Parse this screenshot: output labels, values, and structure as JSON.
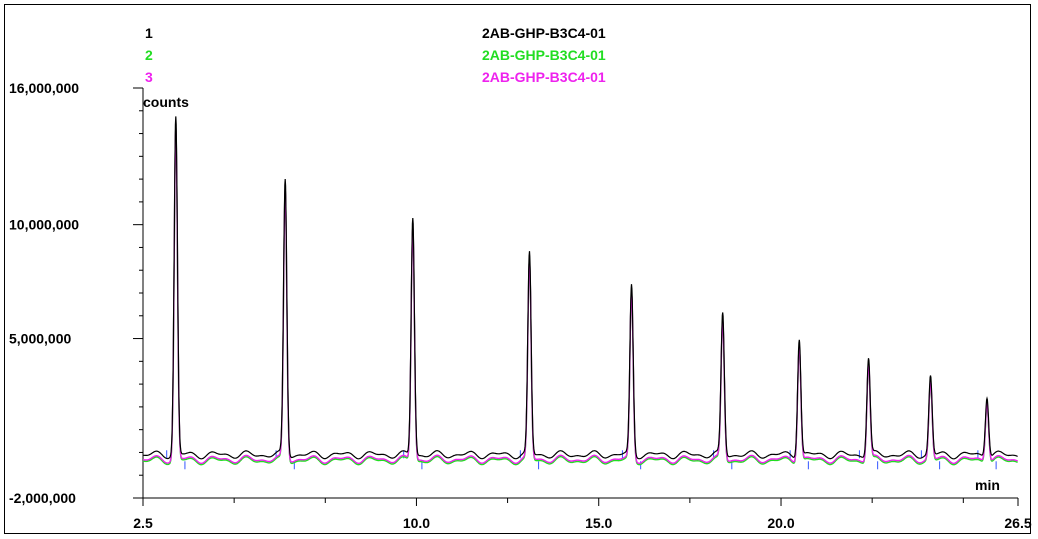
{
  "legend": [
    {
      "index": "1",
      "name": "2AB-GHP-B3C4-01",
      "color": "#000000"
    },
    {
      "index": "2",
      "name": "2AB-GHP-B3C4-01",
      "color": "#22dd22"
    },
    {
      "index": "3",
      "name": "2AB-GHP-B3C4-01",
      "color": "#ee22ee"
    }
  ],
  "chart_data": {
    "type": "line",
    "title": "",
    "xlabel": "min",
    "ylabel": "counts",
    "xlim": [
      2.5,
      26.5
    ],
    "ylim": [
      -2000000,
      16000000
    ],
    "x_ticks": [
      2.5,
      10.0,
      15.0,
      20.0,
      26.5
    ],
    "x_tick_labels": [
      "2.5",
      "10.0",
      "15.0",
      "20.0",
      "26.5"
    ],
    "y_ticks": [
      16000000,
      10000000,
      5000000,
      -2000000
    ],
    "y_tick_labels": [
      "16,000,000",
      "10,000,000",
      "5,000,000",
      "-2,000,000"
    ],
    "grid": false,
    "legend_placement": "top",
    "baseline": -300000,
    "peaks": [
      {
        "rt": 3.4,
        "height": 14300000
      },
      {
        "rt": 6.4,
        "height": 11600000
      },
      {
        "rt": 9.9,
        "height": 10000000
      },
      {
        "rt": 13.1,
        "height": 8400000
      },
      {
        "rt": 15.9,
        "height": 7000000
      },
      {
        "rt": 18.4,
        "height": 5800000
      },
      {
        "rt": 20.5,
        "height": 4800000
      },
      {
        "rt": 22.4,
        "height": 3900000
      },
      {
        "rt": 24.1,
        "height": 3100000
      },
      {
        "rt": 25.65,
        "height": 2300000
      }
    ],
    "series": [
      {
        "name": "1",
        "color": "#000000"
      },
      {
        "name": "2",
        "color": "#22dd22"
      },
      {
        "name": "3",
        "color": "#ee22ee"
      }
    ]
  }
}
